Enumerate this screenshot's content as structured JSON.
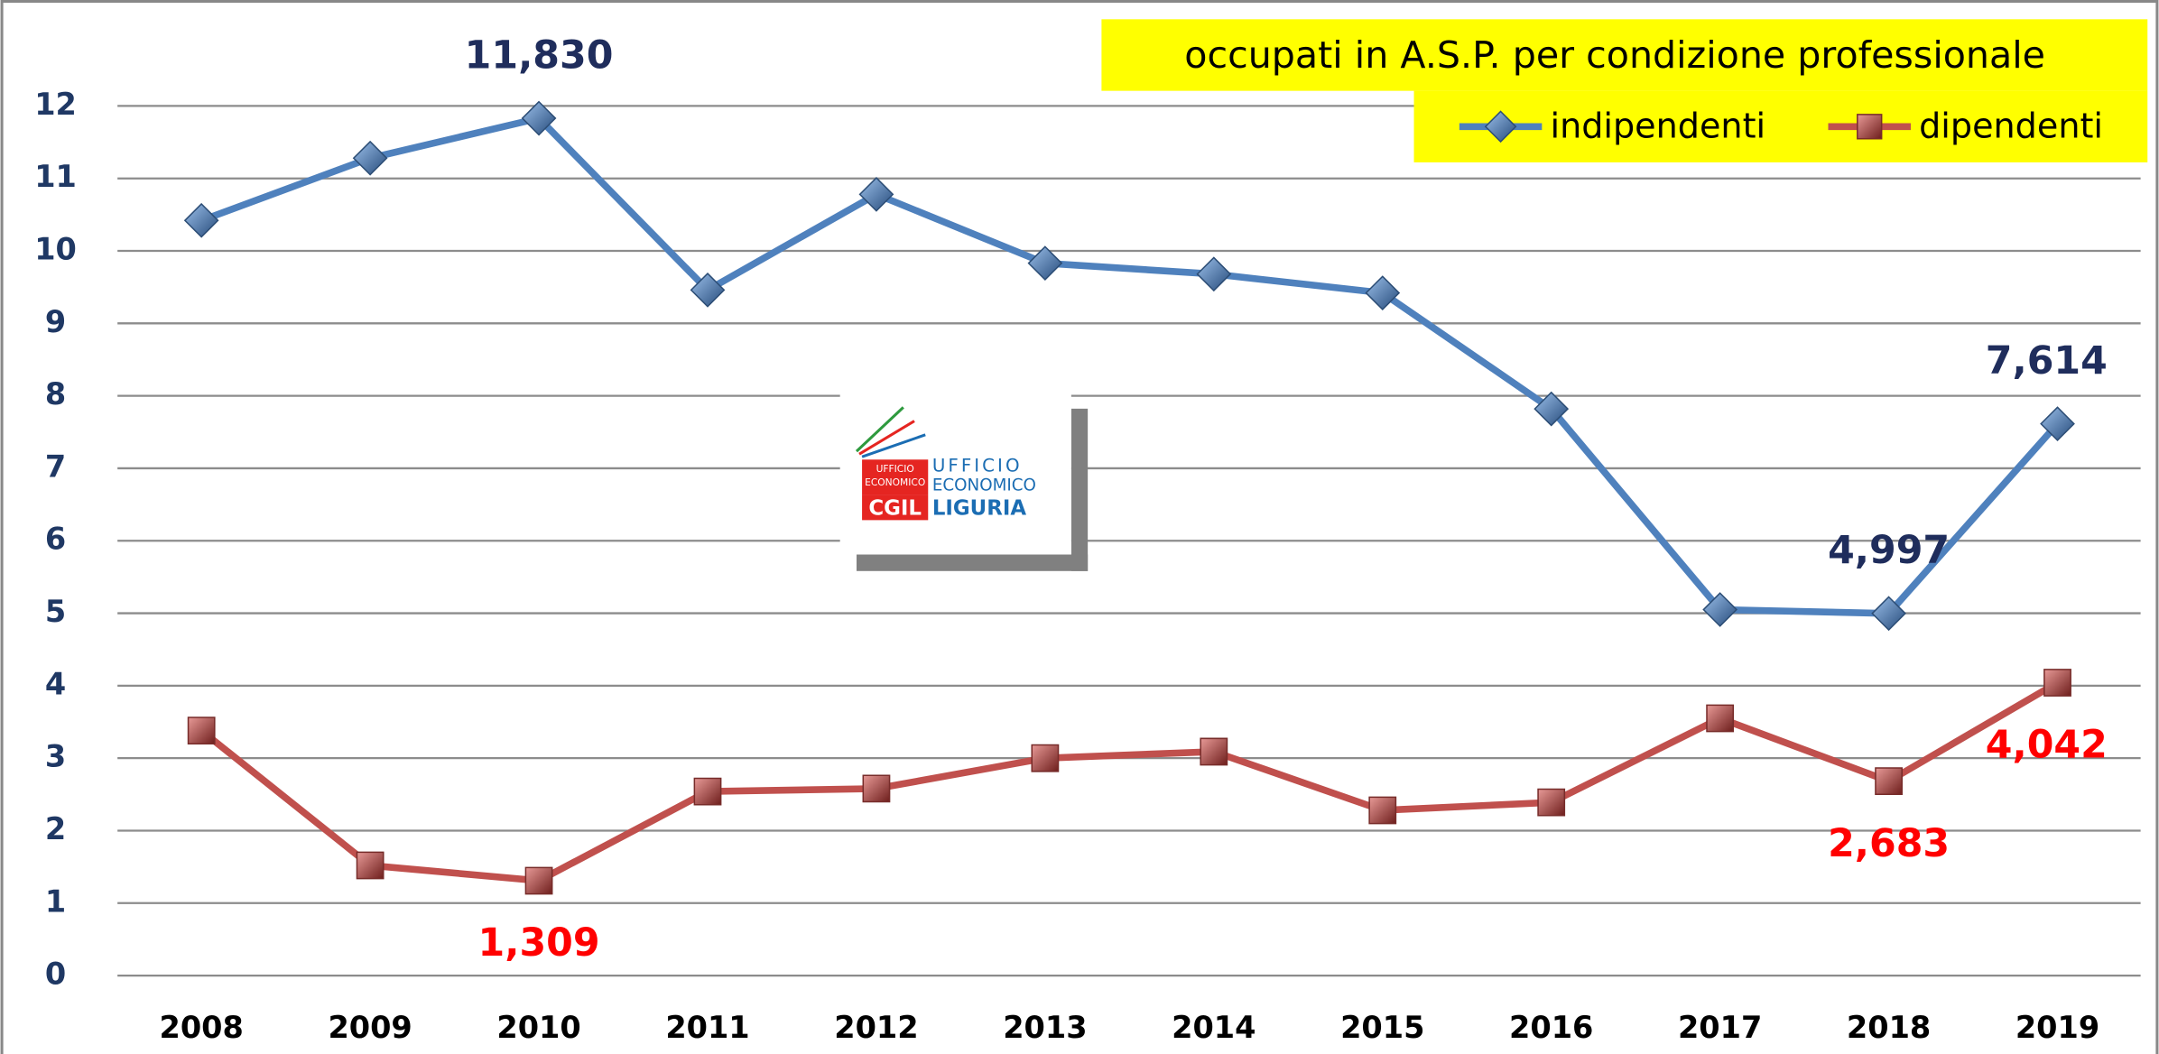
{
  "chart_data": {
    "type": "line",
    "title": "occupati in A.S.P. per condizione professionale",
    "categories": [
      "2008",
      "2009",
      "2010",
      "2011",
      "2012",
      "2013",
      "2014",
      "2015",
      "2016",
      "2017",
      "2018",
      "2019"
    ],
    "series": [
      {
        "name": "indipendenti",
        "color": "#4f81bd",
        "marker": "diamond",
        "label_color": "#1f2d5c",
        "label_side": "above",
        "values": [
          10.42,
          11.28,
          11.83,
          9.46,
          10.78,
          9.83,
          9.68,
          9.42,
          7.82,
          5.05,
          4.997,
          7.614
        ],
        "value_labels": [
          null,
          null,
          "11,830",
          null,
          null,
          null,
          null,
          null,
          null,
          null,
          "4,997",
          "7,614"
        ]
      },
      {
        "name": "dipendenti",
        "color": "#c0504d",
        "marker": "square",
        "label_color": "#ff0000",
        "label_side": "below",
        "values": [
          3.38,
          1.52,
          1.309,
          2.54,
          2.58,
          3.0,
          3.09,
          2.28,
          2.39,
          3.55,
          2.683,
          4.042
        ],
        "value_labels": [
          null,
          null,
          "1,309",
          null,
          null,
          null,
          null,
          null,
          null,
          null,
          "2,683",
          "4,042"
        ]
      }
    ],
    "ylim": [
      0,
      12
    ],
    "yticks": [
      0,
      1,
      2,
      3,
      4,
      5,
      6,
      7,
      8,
      9,
      10,
      11,
      12
    ],
    "grid": true,
    "legend": "top-right",
    "logo": {
      "small": [
        "UFFICIO",
        "ECONOMICO"
      ],
      "lines": [
        "UFFICIO",
        "ECONOMICO"
      ],
      "brand": "CGIL",
      "region": "LIGURIA"
    }
  }
}
